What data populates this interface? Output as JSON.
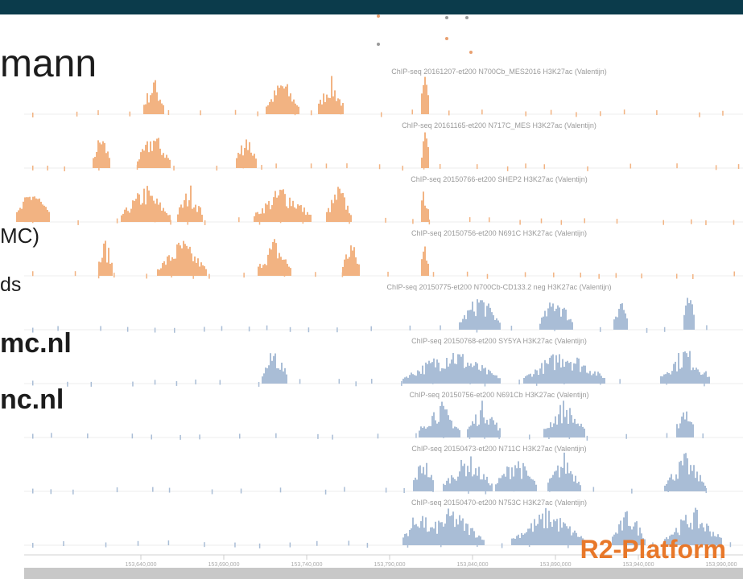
{
  "slide": {
    "title_fragment": "mann",
    "lines": [
      "MC)",
      "ds"
    ],
    "links": [
      "mc.nl",
      "nc.nl"
    ],
    "brand": "R2-Platform"
  },
  "browser": {
    "tracks": [
      {
        "label": "ChIP-seq 20161207-et200 N700Cb_MES2016 H3K27ac (Valentijn)"
      },
      {
        "label": "ChIP-seq 20161165-et200 N717C_MES H3K27ac (Valentijn)"
      },
      {
        "label": "ChIP-seq 20150766-et200 SHEP2 H3K27ac (Valentijn)"
      },
      {
        "label": "ChIP-seq 20150756-et200 N691C H3K27ac (Valentijn)"
      },
      {
        "label": "ChIP-seq 20150775-et200 N700Cb-CD133.2 neg H3K27ac (Valentijn)"
      },
      {
        "label": "ChIP-seq 20150768-et200 SY5YA H3K27ac (Valentijn)"
      },
      {
        "label": "ChIP-seq 20150756-et200 N691Cb H3K27ac (Valentijn)"
      },
      {
        "label": "ChIP-seq 20150473-et200 N711C H3K27ac (Valentijn)"
      },
      {
        "label": "ChIP-seq 20150470-et200 N753C H3K27ac (Valentijn)"
      }
    ],
    "axis_labels": [
      "153,640,000",
      "153,690,000",
      "153,740,000",
      "153,790,000",
      "153,840,000",
      "153,890,000",
      "153,940,000",
      "153,990,000"
    ]
  }
}
